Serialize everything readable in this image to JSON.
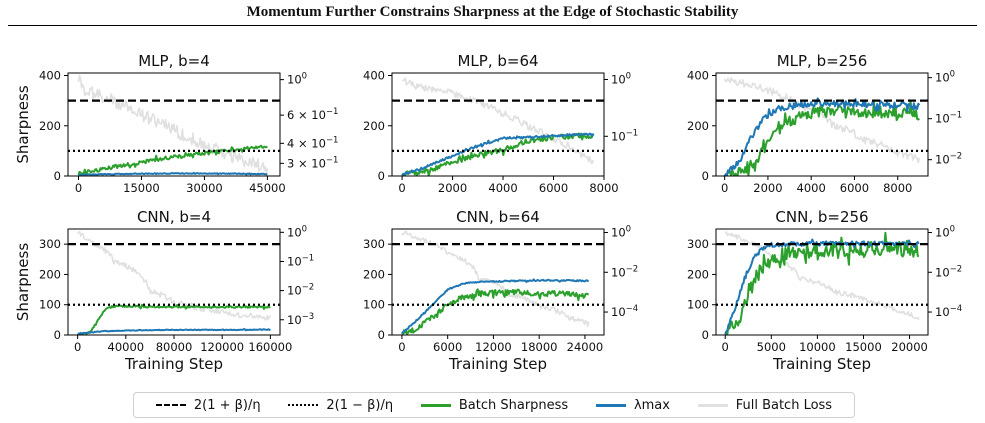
{
  "figure_title": "Momentum Further Constrains Sharpness at the Edge of Stochastic Stability",
  "legend": {
    "upper": "2(1 + β)/η",
    "lower": "2(1 − β)/η",
    "batch": "Batch Sharpness",
    "lambda": "λmax",
    "loss": "Full Batch Loss"
  },
  "colors": {
    "batch": "#2ca02c",
    "lambda": "#1f77b4",
    "loss": "#e0e0e0",
    "ref": "#000000"
  },
  "chart_data": [
    {
      "type": "line",
      "title": "MLP, b=4",
      "xlabel": "",
      "ylabel": "Sharpness",
      "xlim": [
        -2500,
        48000
      ],
      "ylim": [
        0,
        410
      ],
      "xticks": [
        0,
        15000,
        30000,
        45000
      ],
      "xticklabels": [
        "0",
        "15000",
        "30000",
        "45000"
      ],
      "yticks": [
        0,
        200,
        400
      ],
      "yticklabels": [
        "0",
        "200",
        "400"
      ],
      "y2_scale": "log",
      "y2lim": [
        0.25,
        1.1
      ],
      "y2ticks": [
        1,
        0.6,
        0.4,
        0.3
      ],
      "y2ticklabels": [
        "10^0",
        "6 × 10^-1",
        "4 × 10^-1",
        "3 × 10^-1"
      ],
      "hlines": {
        "upper": 300,
        "lower": 100
      },
      "series": [
        {
          "name": "Batch Sharpness",
          "noise": 7,
          "x": [
            0,
            5000,
            10000,
            15000,
            20000,
            25000,
            30000,
            35000,
            40000,
            45000
          ],
          "y": [
            10,
            25,
            40,
            55,
            70,
            80,
            90,
            100,
            110,
            118
          ]
        },
        {
          "name": "λmax",
          "noise": 1.5,
          "x": [
            0,
            10000,
            20000,
            30000,
            45000
          ],
          "y": [
            5,
            8,
            10,
            10,
            8
          ]
        },
        {
          "name": "Full Batch Loss",
          "noise": 0.04,
          "axis": "y2",
          "x": [
            0,
            1500,
            5000,
            15000,
            25000,
            35000,
            45000
          ],
          "y": [
            1.0,
            0.85,
            0.8,
            0.6,
            0.45,
            0.34,
            0.28
          ]
        }
      ]
    },
    {
      "type": "line",
      "title": "MLP, b=64",
      "xlabel": "",
      "ylabel": "",
      "xlim": [
        -400,
        8000
      ],
      "ylim": [
        0,
        410
      ],
      "xticks": [
        0,
        2000,
        4000,
        6000,
        8000
      ],
      "xticklabels": [
        "0",
        "2000",
        "4000",
        "6000",
        "8000"
      ],
      "yticks": [
        0,
        200,
        400
      ],
      "yticklabels": [
        "0",
        "200",
        "400"
      ],
      "y2_scale": "log",
      "y2lim": [
        0.02,
        1.3
      ],
      "y2ticks": [
        1,
        0.1
      ],
      "y2ticklabels": [
        "10^0",
        "10^-1"
      ],
      "hlines": {
        "upper": 300,
        "lower": 100
      },
      "series": [
        {
          "name": "Batch Sharpness",
          "noise": 10,
          "x": [
            0,
            1000,
            2000,
            3000,
            4000,
            5000,
            6000,
            7000,
            7600
          ],
          "y": [
            5,
            20,
            55,
            85,
            105,
            140,
            155,
            160,
            160
          ]
        },
        {
          "name": "λmax",
          "noise": 4,
          "x": [
            0,
            1000,
            2000,
            3000,
            4000,
            5000,
            6000,
            7000,
            7600
          ],
          "y": [
            5,
            40,
            80,
            120,
            150,
            155,
            160,
            165,
            165
          ]
        },
        {
          "name": "Full Batch Loss",
          "noise": 0.06,
          "axis": "y2",
          "x": [
            0,
            500,
            1500,
            3000,
            4000,
            5000,
            6000,
            7000,
            7600
          ],
          "y": [
            1.0,
            0.75,
            0.65,
            0.4,
            0.25,
            0.15,
            0.09,
            0.05,
            0.035
          ]
        }
      ]
    },
    {
      "type": "line",
      "title": "MLP, b=256",
      "xlabel": "",
      "ylabel": "",
      "xlim": [
        -400,
        9400
      ],
      "ylim": [
        0,
        410
      ],
      "xticks": [
        0,
        2000,
        4000,
        6000,
        8000
      ],
      "xticklabels": [
        "0",
        "2000",
        "4000",
        "6000",
        "8000"
      ],
      "yticks": [
        0,
        200,
        400
      ],
      "yticklabels": [
        "0",
        "200",
        "400"
      ],
      "y2_scale": "log",
      "y2lim": [
        0.004,
        1.3
      ],
      "y2ticks": [
        1,
        0.1,
        0.01
      ],
      "y2ticklabels": [
        "10^0",
        "10^-1",
        "10^-2"
      ],
      "hlines": {
        "upper": 300,
        "lower": 100
      },
      "series": [
        {
          "name": "Batch Sharpness",
          "noise": 22,
          "x": [
            0,
            800,
            1500,
            2000,
            2500,
            3000,
            4000,
            5000,
            6000,
            7000,
            8000,
            9000
          ],
          "y": [
            5,
            20,
            70,
            130,
            180,
            220,
            250,
            260,
            255,
            255,
            250,
            245
          ]
        },
        {
          "name": "λmax",
          "noise": 12,
          "x": [
            0,
            700,
            1200,
            1800,
            2500,
            3500,
            4500,
            6000,
            7000,
            8000,
            9000
          ],
          "y": [
            5,
            60,
            150,
            230,
            270,
            285,
            290,
            285,
            285,
            280,
            278
          ]
        },
        {
          "name": "Full Batch Loss",
          "noise": 0.09,
          "axis": "y2",
          "x": [
            0,
            500,
            2000,
            3500,
            5000,
            6500,
            8000,
            9000
          ],
          "y": [
            1.0,
            0.8,
            0.5,
            0.2,
            0.07,
            0.03,
            0.015,
            0.01
          ]
        }
      ]
    },
    {
      "type": "line",
      "title": "CNN, b=4",
      "xlabel": "Training Step",
      "ylabel": "Sharpness",
      "xlim": [
        -8000,
        168000
      ],
      "ylim": [
        0,
        350
      ],
      "xticks": [
        0,
        40000,
        80000,
        120000,
        160000
      ],
      "xticklabels": [
        "0",
        "40000",
        "80000",
        "120000",
        "160000"
      ],
      "yticks": [
        0,
        100,
        200,
        300
      ],
      "yticklabels": [
        "0",
        "100",
        "200",
        "300"
      ],
      "y2_scale": "log",
      "y2lim": [
        0.0003,
        1.3
      ],
      "y2ticks": [
        1,
        0.1,
        0.01,
        0.001
      ],
      "y2ticklabels": [
        "10^0",
        "10^-1",
        "10^-2",
        "10^-3"
      ],
      "hlines": {
        "upper": 300,
        "lower": 100
      },
      "series": [
        {
          "name": "Batch Sharpness",
          "noise": 3,
          "x": [
            0,
            10000,
            15000,
            20000,
            25000,
            30000,
            40000,
            60000,
            100000,
            160000
          ],
          "y": [
            0,
            10,
            35,
            70,
            90,
            95,
            95,
            93,
            93,
            92
          ]
        },
        {
          "name": "λmax",
          "noise": 1,
          "x": [
            0,
            20000,
            40000,
            80000,
            120000,
            160000
          ],
          "y": [
            5,
            12,
            15,
            17,
            17,
            18
          ]
        },
        {
          "name": "Full Batch Loss",
          "noise": 0.1,
          "axis": "y2",
          "x": [
            0,
            10000,
            30000,
            60000,
            80000,
            100000,
            130000,
            160000
          ],
          "y": [
            1.0,
            0.5,
            0.1,
            0.01,
            0.004,
            0.0025,
            0.0015,
            0.0012
          ]
        }
      ]
    },
    {
      "type": "line",
      "title": "CNN, b=64",
      "xlabel": "Training Step",
      "ylabel": "",
      "xlim": [
        -1300,
        26500
      ],
      "ylim": [
        0,
        350
      ],
      "xticks": [
        0,
        6000,
        12000,
        18000,
        24000
      ],
      "xticklabels": [
        "0",
        "6000",
        "12000",
        "18000",
        "24000"
      ],
      "yticks": [
        0,
        100,
        200,
        300
      ],
      "yticklabels": [
        "0",
        "100",
        "200",
        "300"
      ],
      "y2_scale": "log",
      "y2lim": [
        7e-06,
        1.5
      ],
      "y2ticks": [
        1,
        0.01,
        0.0001
      ],
      "y2ticklabels": [
        "10^0",
        "10^-2",
        "10^-4"
      ],
      "hlines": {
        "upper": 300,
        "lower": 100
      },
      "series": [
        {
          "name": "Batch Sharpness",
          "noise": 9,
          "x": [
            0,
            2000,
            4000,
            6000,
            8000,
            10000,
            12000,
            15000,
            18000,
            21000,
            24500
          ],
          "y": [
            5,
            20,
            60,
            100,
            125,
            135,
            140,
            140,
            135,
            135,
            130
          ]
        },
        {
          "name": "λmax",
          "noise": 2,
          "x": [
            0,
            2000,
            4000,
            6000,
            8000,
            10000,
            14000,
            18000,
            22000,
            24500
          ],
          "y": [
            5,
            50,
            100,
            150,
            170,
            175,
            178,
            180,
            180,
            178
          ]
        },
        {
          "name": "Full Batch Loss",
          "noise": 0.12,
          "axis": "y2",
          "x": [
            0,
            2000,
            6000,
            10000,
            14000,
            18000,
            22000,
            24500
          ],
          "y": [
            1.0,
            0.5,
            0.08,
            0.005,
            0.0008,
            0.0002,
            5e-05,
            2.5e-05
          ]
        }
      ]
    },
    {
      "type": "line",
      "title": "CNN, b=256",
      "xlabel": "Training Step",
      "ylabel": "",
      "xlim": [
        -1000,
        22000
      ],
      "ylim": [
        0,
        350
      ],
      "xticks": [
        0,
        5000,
        10000,
        15000,
        20000
      ],
      "xticklabels": [
        "0",
        "5000",
        "10000",
        "15000",
        "20000"
      ],
      "yticks": [
        0,
        100,
        200,
        300
      ],
      "yticklabels": [
        "0",
        "100",
        "200",
        "300"
      ],
      "y2_scale": "log",
      "y2lim": [
        7e-06,
        1.5
      ],
      "y2ticks": [
        1,
        0.01,
        0.0001
      ],
      "y2ticklabels": [
        "10^0",
        "10^-2",
        "10^-4"
      ],
      "hlines": {
        "upper": 300,
        "lower": 100
      },
      "series": [
        {
          "name": "Batch Sharpness",
          "noise": 24,
          "x": [
            0,
            1500,
            2500,
            3500,
            4500,
            5500,
            7000,
            10000,
            14000,
            18000,
            21000
          ],
          "y": [
            5,
            50,
            130,
            200,
            240,
            260,
            275,
            280,
            285,
            285,
            280
          ]
        },
        {
          "name": "λmax",
          "noise": 7,
          "x": [
            0,
            1000,
            2000,
            3000,
            4000,
            5000,
            7000,
            10000,
            15000,
            21000
          ],
          "y": [
            5,
            80,
            180,
            250,
            285,
            298,
            300,
            302,
            302,
            300
          ]
        },
        {
          "name": "Full Batch Loss",
          "noise": 0.12,
          "axis": "y2",
          "x": [
            0,
            2000,
            5000,
            8000,
            12000,
            16000,
            19000,
            21000
          ],
          "y": [
            1.0,
            0.4,
            0.05,
            0.005,
            0.001,
            0.0003,
            0.0001,
            5e-05
          ]
        }
      ]
    }
  ]
}
